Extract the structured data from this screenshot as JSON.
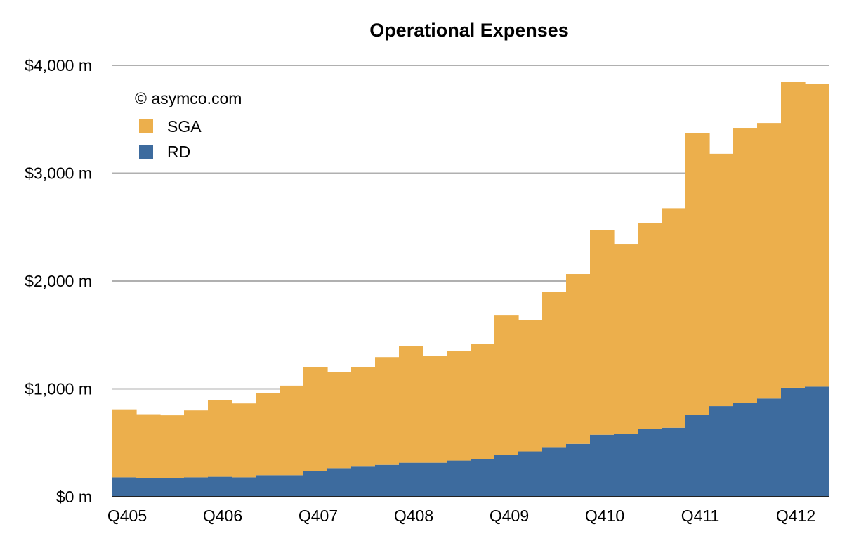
{
  "chart_data": {
    "type": "area",
    "title": "Operational Expenses",
    "annotation": "© asymco.com",
    "y_tick_labels": [
      "$0 m",
      "$1,000 m",
      "$2,000 m",
      "$3,000 m",
      "$4,000 m"
    ],
    "y_tick_values": [
      0,
      1000,
      2000,
      3000,
      4000
    ],
    "ylim": [
      0,
      4000
    ],
    "grid": true,
    "legend_position": "top-left",
    "x_labels": [
      "Q405",
      "Q406",
      "Q407",
      "Q408",
      "Q409",
      "Q410",
      "Q411",
      "Q412"
    ],
    "x": [
      "Q405",
      "Q106",
      "Q206",
      "Q306",
      "Q406",
      "Q107",
      "Q207",
      "Q307",
      "Q407",
      "Q108",
      "Q208",
      "Q308",
      "Q408",
      "Q109",
      "Q209",
      "Q309",
      "Q409",
      "Q110",
      "Q210",
      "Q310",
      "Q410",
      "Q111",
      "Q211",
      "Q311",
      "Q411",
      "Q112",
      "Q212",
      "Q312",
      "Q412",
      "Q113"
    ],
    "series": [
      {
        "name": "RD",
        "color": "#3d6b9e",
        "values": [
          180,
          175,
          175,
          180,
          185,
          180,
          200,
          200,
          240,
          265,
          285,
          295,
          315,
          315,
          335,
          350,
          390,
          420,
          460,
          490,
          575,
          580,
          630,
          640,
          760,
          840,
          870,
          910,
          1010,
          1020
        ]
      },
      {
        "name": "SGA",
        "color": "#ecaf4c",
        "values": [
          630,
          590,
          580,
          620,
          710,
          685,
          760,
          830,
          965,
          890,
          920,
          1000,
          1085,
          990,
          1015,
          1070,
          1290,
          1220,
          1440,
          1575,
          1895,
          1765,
          1910,
          2035,
          2610,
          2340,
          2550,
          2555,
          2840,
          2810
        ]
      }
    ]
  }
}
